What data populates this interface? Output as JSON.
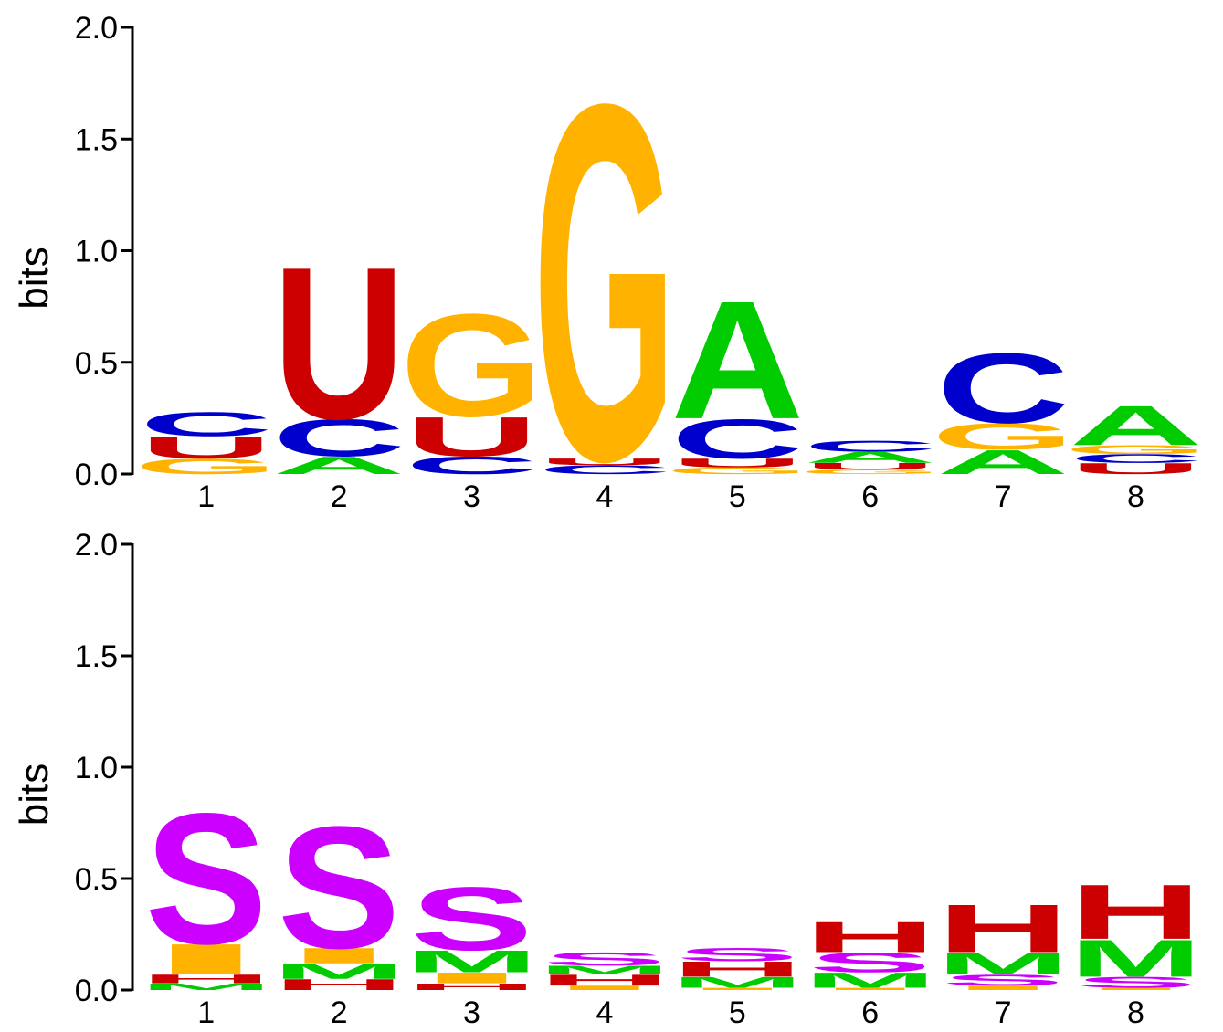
{
  "colors": {
    "A": "#00cc00",
    "C": "#0000cc",
    "G": "#ffb300",
    "U": "#cc0000",
    "S": "#cc00ff",
    "H": "#cc0000",
    "M": "#00cc00",
    "I": "#ffb300",
    "T": "#ffb300"
  },
  "chart_data": [
    {
      "type": "sequence-logo",
      "ylabel": "bits",
      "ylim": [
        0,
        2.0
      ],
      "yticks": [
        "0.0",
        "0.5",
        "1.0",
        "1.5",
        "2.0"
      ],
      "categories": [
        "1",
        "2",
        "3",
        "4",
        "5",
        "6",
        "7",
        "8"
      ],
      "stacks": [
        [
          {
            "letter": "G",
            "value": 0.07
          },
          {
            "letter": "U",
            "value": 0.1
          },
          {
            "letter": "C",
            "value": 0.11
          }
        ],
        [
          {
            "letter": "A",
            "value": 0.08
          },
          {
            "letter": "C",
            "value": 0.17
          },
          {
            "letter": "U",
            "value": 0.7
          }
        ],
        [
          {
            "letter": "C",
            "value": 0.08
          },
          {
            "letter": "U",
            "value": 0.18
          },
          {
            "letter": "G",
            "value": 0.47
          }
        ],
        [
          {
            "letter": "C",
            "value": 0.04
          },
          {
            "letter": "U",
            "value": 0.03
          },
          {
            "letter": "G",
            "value": 1.63
          }
        ],
        [
          {
            "letter": "G",
            "value": 0.03
          },
          {
            "letter": "U",
            "value": 0.04
          },
          {
            "letter": "C",
            "value": 0.18
          },
          {
            "letter": "A",
            "value": 0.54
          }
        ],
        [
          {
            "letter": "G",
            "value": 0.02
          },
          {
            "letter": "U",
            "value": 0.03
          },
          {
            "letter": "A",
            "value": 0.05
          },
          {
            "letter": "C",
            "value": 0.05
          }
        ],
        [
          {
            "letter": "A",
            "value": 0.11
          },
          {
            "letter": "G",
            "value": 0.12
          },
          {
            "letter": "C",
            "value": 0.32
          }
        ],
        [
          {
            "letter": "U",
            "value": 0.05
          },
          {
            "letter": "C",
            "value": 0.04
          },
          {
            "letter": "G",
            "value": 0.04
          },
          {
            "letter": "A",
            "value": 0.18
          }
        ]
      ]
    },
    {
      "type": "sequence-logo",
      "ylabel": "bits",
      "ylim": [
        0,
        2.0
      ],
      "yticks": [
        "0.0",
        "0.5",
        "1.0",
        "1.5",
        "2.0"
      ],
      "categories": [
        "1",
        "2",
        "3",
        "4",
        "5",
        "6",
        "7",
        "8"
      ],
      "stacks": [
        [
          {
            "letter": "M",
            "value": 0.03
          },
          {
            "letter": "H",
            "value": 0.04
          },
          {
            "letter": "I",
            "value": 0.14
          },
          {
            "letter": "S",
            "value": 0.6
          }
        ],
        [
          {
            "letter": "H",
            "value": 0.05
          },
          {
            "letter": "M",
            "value": 0.07
          },
          {
            "letter": "I",
            "value": 0.07
          },
          {
            "letter": "S",
            "value": 0.56
          }
        ],
        [
          {
            "letter": "H",
            "value": 0.03
          },
          {
            "letter": "I",
            "value": 0.05
          },
          {
            "letter": "M",
            "value": 0.1
          },
          {
            "letter": "S",
            "value": 0.29
          }
        ],
        [
          {
            "letter": "I",
            "value": 0.02
          },
          {
            "letter": "H",
            "value": 0.05
          },
          {
            "letter": "M",
            "value": 0.04
          },
          {
            "letter": "S",
            "value": 0.06
          }
        ],
        [
          {
            "letter": "I",
            "value": 0.01
          },
          {
            "letter": "M",
            "value": 0.05
          },
          {
            "letter": "H",
            "value": 0.07
          },
          {
            "letter": "S",
            "value": 0.06
          }
        ],
        [
          {
            "letter": "I",
            "value": 0.01
          },
          {
            "letter": "M",
            "value": 0.07
          },
          {
            "letter": "S",
            "value": 0.09
          },
          {
            "letter": "H",
            "value": 0.14
          }
        ],
        [
          {
            "letter": "I",
            "value": 0.02
          },
          {
            "letter": "S",
            "value": 0.05
          },
          {
            "letter": "M",
            "value": 0.1
          },
          {
            "letter": "H",
            "value": 0.22
          }
        ],
        [
          {
            "letter": "I",
            "value": 0.01
          },
          {
            "letter": "S",
            "value": 0.05
          },
          {
            "letter": "M",
            "value": 0.17
          },
          {
            "letter": "H",
            "value": 0.25
          }
        ]
      ]
    }
  ]
}
